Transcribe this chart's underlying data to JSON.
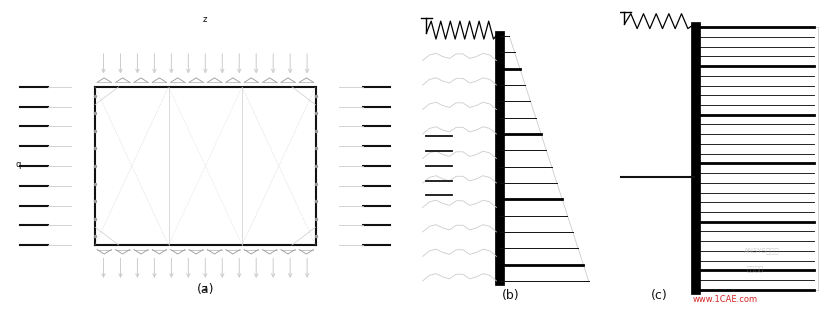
{
  "label_a": "(a)",
  "label_b": "(b)",
  "label_c": "(c)",
  "dark": "#111111",
  "gray": "#999999",
  "light_gray": "#cccccc",
  "red": "#cc0000",
  "watermark": "www.1CAE.com"
}
